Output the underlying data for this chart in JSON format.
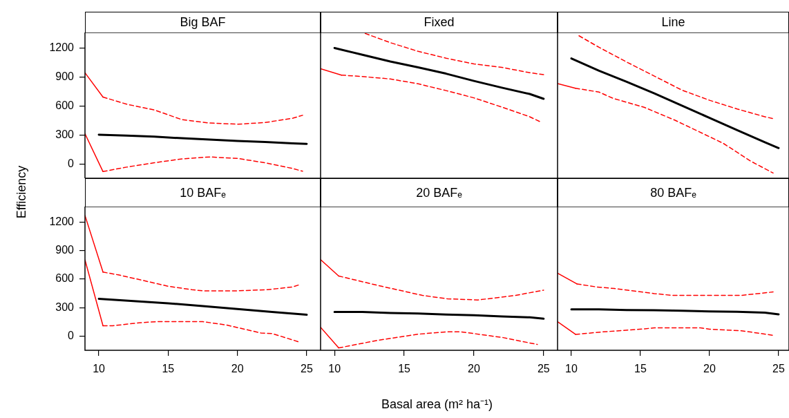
{
  "chart_data": [
    {
      "type": "line",
      "title": "Big BAF",
      "ylabel": "Efficiency",
      "xlim": [
        9,
        26
      ],
      "xticks": [
        10,
        15,
        20,
        25
      ],
      "ylim": [
        -145,
        1360
      ],
      "yticks": [
        0,
        300,
        600,
        900,
        1200
      ],
      "tick_labels": "y",
      "series": [
        {
          "color": "#000000",
          "line_style": "solid",
          "x": [
            10,
            12,
            14,
            16,
            18,
            20,
            22,
            24,
            25
          ],
          "values": [
            305,
            295,
            285,
            268,
            255,
            240,
            230,
            215,
            210
          ]
        },
        {
          "color": "#ff0000",
          "line_style": "dashed",
          "x": [
            10.3,
            12,
            14,
            16,
            18,
            20,
            22,
            24,
            24.7
          ],
          "values": [
            693,
            620,
            560,
            460,
            425,
            413,
            430,
            475,
            505
          ]
        },
        {
          "color": "#ff0000",
          "line_style": "dashed",
          "x": [
            10.3,
            12,
            14,
            16,
            18,
            20,
            22,
            24,
            24.7
          ],
          "values": [
            -76,
            -30,
            15,
            55,
            75,
            60,
            15,
            -45,
            -72
          ]
        },
        {
          "color": "#ff0000",
          "line_style": "solid",
          "x": [
            9,
            10.3
          ],
          "values": [
            944,
            693
          ]
        },
        {
          "color": "#ff0000",
          "line_style": "solid",
          "x": [
            9,
            10.3
          ],
          "values": [
            315,
            -76
          ]
        }
      ]
    },
    {
      "type": "line",
      "title": "Fixed",
      "xlim": [
        9,
        26
      ],
      "xticks": [
        10,
        15,
        20,
        25
      ],
      "ylim": [
        -145,
        1360
      ],
      "yticks": [
        0,
        300,
        600,
        900,
        1200
      ],
      "tick_labels": false,
      "series": [
        {
          "color": "#000000",
          "line_style": "solid",
          "x": [
            10,
            12,
            14,
            16,
            18,
            20,
            22,
            24,
            25
          ],
          "values": [
            1200,
            1130,
            1060,
            1000,
            935,
            860,
            790,
            725,
            675
          ]
        },
        {
          "color": "#ff0000",
          "line_style": "dashed",
          "x": [
            12.2,
            14,
            16,
            18,
            20,
            22,
            24,
            25
          ],
          "values": [
            1350,
            1255,
            1165,
            1095,
            1035,
            1000,
            945,
            925
          ]
        },
        {
          "color": "#ff0000",
          "line_style": "dashed",
          "x": [
            10.5,
            12,
            14,
            16,
            18,
            20,
            22,
            24,
            24.8
          ],
          "values": [
            920,
            905,
            880,
            830,
            760,
            685,
            590,
            490,
            435
          ]
        },
        {
          "color": "#ff0000",
          "line_style": "solid",
          "x": [
            9,
            10.5
          ],
          "values": [
            985,
            920
          ]
        }
      ]
    },
    {
      "type": "line",
      "title": "Line",
      "xlim": [
        9,
        25.75
      ],
      "xticks": [
        10,
        15,
        20,
        25
      ],
      "ylim": [
        -145,
        1360
      ],
      "yticks": [
        0,
        300,
        600,
        900,
        1200
      ],
      "tick_labels": false,
      "series": [
        {
          "color": "#000000",
          "line_style": "solid",
          "x": [
            10,
            12,
            14,
            16,
            18,
            20,
            22,
            24,
            25
          ],
          "values": [
            1092,
            965,
            851,
            731,
            605,
            478,
            351,
            227,
            167
          ]
        },
        {
          "color": "#ff0000",
          "line_style": "dashed",
          "x": [
            10.55,
            12,
            14,
            16,
            18,
            20,
            22,
            24,
            24.6
          ],
          "values": [
            1326,
            1207,
            1055,
            910,
            765,
            660,
            570,
            490,
            471
          ]
        },
        {
          "color": "#ff0000",
          "line_style": "dashed",
          "x": [
            10.3,
            12,
            13,
            15.3,
            17.5,
            19,
            21,
            23,
            24.6
          ],
          "values": [
            784,
            745,
            681,
            586,
            454,
            352,
            215,
            30,
            -91
          ]
        },
        {
          "color": "#ff0000",
          "line_style": "solid",
          "x": [
            9,
            10.3
          ],
          "values": [
            832,
            784
          ]
        }
      ]
    },
    {
      "type": "line",
      "title": "10 BAFₑ",
      "xlim": [
        9,
        26
      ],
      "xticks": [
        10,
        15,
        20,
        25
      ],
      "ylim": [
        -145,
        1360
      ],
      "yticks": [
        0,
        300,
        600,
        900,
        1200
      ],
      "series": [
        {
          "color": "#000000",
          "line_style": "solid",
          "x": [
            10,
            12.5,
            15,
            17.5,
            20,
            22.5,
            25
          ],
          "values": [
            394,
            370,
            347,
            318,
            287,
            257,
            227
          ]
        },
        {
          "color": "#ff0000",
          "line_style": "dashed",
          "x": [
            10.3,
            11.4,
            13,
            15,
            16.7,
            17.5,
            20,
            22.2,
            24,
            24.5
          ],
          "values": [
            674,
            645,
            593,
            526,
            490,
            478,
            478,
            490,
            519,
            543
          ]
        },
        {
          "color": "#ff0000",
          "line_style": "dashed",
          "x": [
            10.3,
            11,
            12.9,
            14.2,
            17.5,
            19.2,
            21.7,
            22.5,
            24.5
          ],
          "values": [
            112,
            112,
            143,
            155,
            155,
            120,
            36,
            31,
            -60
          ]
        },
        {
          "color": "#ff0000",
          "line_style": "solid",
          "x": [
            9,
            10.3
          ],
          "values": [
            1267,
            674
          ]
        },
        {
          "color": "#ff0000",
          "line_style": "solid",
          "x": [
            9,
            10.3
          ],
          "values": [
            801,
            112
          ]
        }
      ]
    },
    {
      "type": "line",
      "title": "20 BAFₑ",
      "xlabel": "Basal area (m² ha⁻¹)",
      "xlim": [
        9,
        26
      ],
      "xticks": [
        10,
        15,
        20,
        25
      ],
      "ylim": [
        -145,
        1360
      ],
      "yticks": [
        0,
        300,
        600,
        900,
        1200
      ],
      "tick_labels": "x",
      "series": [
        {
          "color": "#000000",
          "line_style": "solid",
          "x": [
            10,
            12,
            14,
            16,
            18,
            20,
            22,
            24,
            25
          ],
          "values": [
            256,
            256,
            245,
            240,
            230,
            222,
            210,
            200,
            186
          ]
        },
        {
          "color": "#ff0000",
          "line_style": "dashed",
          "x": [
            10.3,
            13,
            16.3,
            18.1,
            20.3,
            23,
            25
          ],
          "values": [
            633,
            538,
            430,
            394,
            382,
            430,
            485
          ]
        },
        {
          "color": "#ff0000",
          "line_style": "dashed",
          "x": [
            10.3,
            13,
            16,
            18,
            19.1,
            22.1,
            24.55
          ],
          "values": [
            -120,
            -43,
            24,
            48,
            48,
            -12,
            -84
          ]
        },
        {
          "color": "#ff0000",
          "line_style": "solid",
          "x": [
            9,
            10.3
          ],
          "values": [
            805,
            633
          ]
        },
        {
          "color": "#ff0000",
          "line_style": "solid",
          "x": [
            9,
            10.3
          ],
          "values": [
            96,
            -120
          ]
        }
      ]
    },
    {
      "type": "line",
      "title": "80 BAFₑ",
      "xlim": [
        9,
        25.75
      ],
      "xticks": [
        10,
        15,
        20,
        25
      ],
      "ylim": [
        -145,
        1360
      ],
      "yticks": [
        0,
        300,
        600,
        900,
        1200
      ],
      "tick_labels": "x",
      "series": [
        {
          "color": "#000000",
          "line_style": "solid",
          "x": [
            10,
            12,
            14,
            16,
            18,
            20,
            22,
            24,
            25
          ],
          "values": [
            284,
            284,
            276,
            274,
            270,
            262,
            258,
            250,
            232
          ]
        },
        {
          "color": "#ff0000",
          "line_style": "dashed",
          "x": [
            10.4,
            11.8,
            13.1,
            16,
            17.3,
            22.3,
            24.6
          ],
          "values": [
            550,
            519,
            502,
            449,
            430,
            430,
            466
          ]
        },
        {
          "color": "#ff0000",
          "line_style": "dashed",
          "x": [
            10.3,
            12.3,
            15.3,
            16,
            19.3,
            20,
            22.3,
            24.6
          ],
          "values": [
            22,
            48,
            79,
            91,
            91,
            76,
            60,
            12
          ]
        },
        {
          "color": "#ff0000",
          "line_style": "solid",
          "x": [
            9,
            10.4
          ],
          "values": [
            662,
            550
          ]
        },
        {
          "color": "#ff0000",
          "line_style": "solid",
          "x": [
            9,
            10.3
          ],
          "values": [
            155,
            22
          ]
        }
      ]
    }
  ]
}
